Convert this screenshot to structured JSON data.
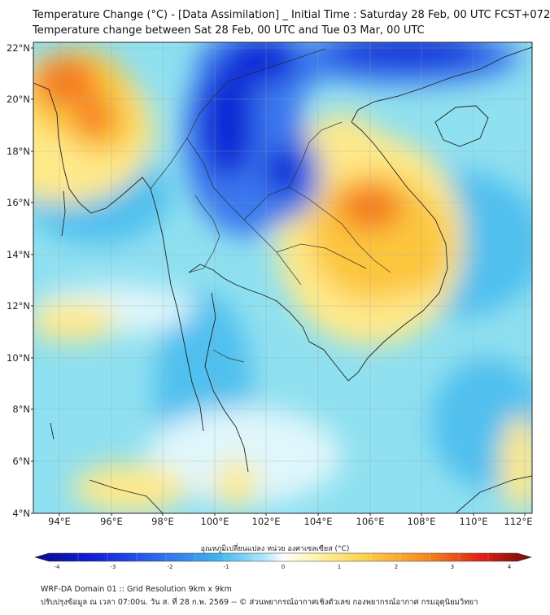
{
  "header": {
    "title_line1": "Temperature Change (°C) - [Data Assimilation] _ Initial Time : Saturday 28 Feb, 00 UTC FCST+072",
    "title_line2": "Temperature change between Sat 28 Feb, 00 UTC and Tue 03 Mar, 00 UTC"
  },
  "map": {
    "lat_labels": [
      "22°N",
      "20°N",
      "18°N",
      "16°N",
      "14°N",
      "12°N",
      "10°N",
      "8°N",
      "6°N",
      "4°N"
    ],
    "lon_labels": [
      "94°E",
      "96°E",
      "98°E",
      "100°E",
      "102°E",
      "104°E",
      "106°E",
      "108°E",
      "110°E",
      "112°E"
    ],
    "colors": {
      "base": "#8fe0f0",
      "cold_strong": "#0f2bd6",
      "cold": "#3b78ee",
      "cool": "#4fc0ef",
      "neutral": "#dff6fb",
      "warm_light": "#ffe98a",
      "warm": "#fcc63e",
      "hot": "#f57a20",
      "coast": "#222222"
    }
  },
  "colorbar": {
    "label": "อุณหภูมิเปลี่ยนแปลง หน่วย องศาเซลเซียส (°C)",
    "ticks": [
      "-4",
      "-3",
      "-2",
      "-1",
      "0",
      "1",
      "2",
      "3",
      "4"
    ],
    "min": -4,
    "max": 4
  },
  "footer": {
    "line1": "WRF-DA Domain 01 :: Grid Resolution 9km x 9km",
    "line2": "ปรับปรุงข้อมูล ณ เวลา 07:00น. วัน ส. ที่ 28 ก.พ. 2569 -- © ส่วนพยากรณ์อากาศเชิงตัวเลข กองพยากรณ์อากาศ กรมอุตุนิยมวิทยา"
  }
}
